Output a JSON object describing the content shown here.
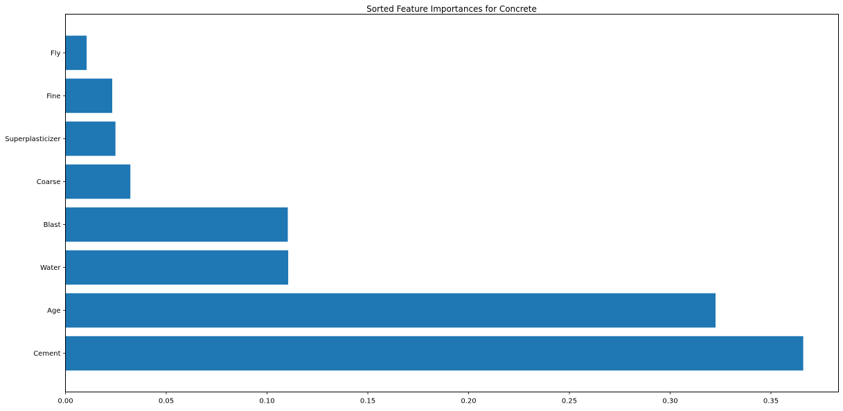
{
  "chart_data": {
    "type": "bar",
    "orientation": "horizontal",
    "title": "Sorted Feature Importances for Concrete",
    "xlabel": "",
    "ylabel": "",
    "categories": [
      "Cement",
      "Age",
      "Water",
      "Blast",
      "Coarse",
      "Superplasticizer",
      "Fine",
      "Fly"
    ],
    "values": [
      0.366,
      0.3225,
      0.1105,
      0.1103,
      0.0322,
      0.0248,
      0.0232,
      0.0105
    ],
    "xlim": [
      0,
      0.3835
    ],
    "xticks": [
      0.0,
      0.05,
      0.1,
      0.15,
      0.2,
      0.25,
      0.3,
      0.35
    ],
    "xtick_labels": [
      "0.00",
      "0.05",
      "0.10",
      "0.15",
      "0.20",
      "0.25",
      "0.30",
      "0.35"
    ],
    "bar_color": "#1f77b4",
    "grid": false,
    "legend": false
  }
}
